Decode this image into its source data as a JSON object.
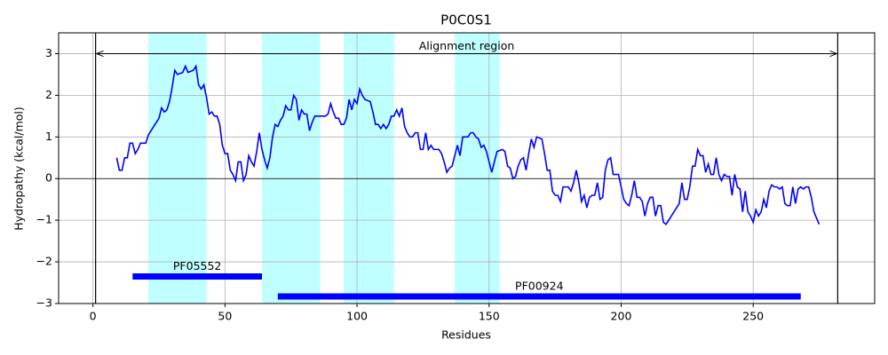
{
  "chart_data": {
    "type": "line",
    "title": "P0C0S1",
    "x_label": "Residues",
    "y_label": "Hydropathy (kcal/mol)",
    "x": [
      9,
      10,
      11,
      12,
      13,
      14,
      15,
      16,
      17,
      18,
      20,
      21,
      23,
      25,
      26,
      27,
      28,
      29,
      30,
      31,
      32,
      34,
      35,
      36,
      38,
      39,
      40,
      41,
      42,
      43,
      44,
      45,
      46,
      47,
      48,
      49,
      50,
      51,
      52,
      53,
      54,
      55,
      56,
      57,
      58,
      59,
      60,
      61,
      62,
      63,
      64,
      65,
      66,
      67,
      68,
      69,
      70,
      71,
      72,
      73,
      74,
      75,
      76,
      77,
      78,
      79,
      80,
      81,
      82,
      83,
      84,
      86,
      88,
      89,
      90,
      91,
      92,
      93,
      94,
      95,
      96,
      97,
      98,
      99,
      100,
      101,
      102,
      103,
      105,
      106,
      107,
      108,
      109,
      110,
      111,
      112,
      113,
      114,
      115,
      116,
      117,
      118,
      119,
      120,
      121,
      122,
      123,
      124,
      125,
      126,
      127,
      128,
      129,
      131,
      132,
      133,
      134,
      135,
      136,
      137,
      138,
      139,
      140,
      141,
      142,
      143,
      144,
      145,
      146,
      147,
      148,
      149,
      150,
      151,
      152,
      153,
      155,
      156,
      157,
      158,
      159,
      160,
      161,
      162,
      163,
      164,
      165,
      166,
      167,
      168,
      170,
      171,
      172,
      173,
      174,
      175,
      176,
      177,
      178,
      180,
      181,
      182,
      183,
      184,
      185,
      186,
      187,
      188,
      189,
      190,
      191,
      192,
      193,
      194,
      195,
      196,
      197,
      198,
      199,
      200,
      201,
      202,
      203,
      204,
      205,
      206,
      207,
      208,
      209,
      210,
      211,
      212,
      213,
      214,
      215,
      216,
      217,
      222,
      223,
      224,
      225,
      226,
      227,
      228,
      229,
      230,
      231,
      232,
      233,
      234,
      235,
      236,
      237,
      238,
      239,
      240,
      241,
      242,
      243,
      244,
      245,
      246,
      247,
      248,
      249,
      250,
      251,
      252,
      253,
      254,
      255,
      256,
      257,
      258,
      259,
      260,
      261,
      262,
      263,
      264,
      265,
      266,
      267,
      268,
      269,
      270,
      271,
      272,
      273,
      274,
      275
    ],
    "series": [
      {
        "color": "#0000ff",
        "values": [
          0.5,
          0.2,
          0.2,
          0.5,
          0.5,
          0.85,
          0.85,
          0.6,
          0.7,
          0.85,
          0.85,
          1.05,
          1.25,
          1.45,
          1.7,
          1.6,
          1.65,
          1.85,
          2.2,
          2.6,
          2.5,
          2.55,
          2.7,
          2.55,
          2.6,
          2.7,
          2.25,
          2.15,
          2.25,
          1.95,
          1.55,
          1.6,
          1.5,
          1.5,
          1.3,
          0.8,
          0.6,
          0.6,
          0.2,
          0.1,
          -0.05,
          0.4,
          0.4,
          -0.05,
          0.1,
          0.55,
          0.4,
          0.3,
          0.65,
          1.1,
          0.7,
          0.45,
          0.25,
          0.5,
          1.0,
          1.3,
          1.25,
          1.4,
          1.5,
          1.75,
          1.65,
          1.65,
          2.0,
          1.9,
          1.4,
          1.65,
          1.55,
          1.55,
          1.15,
          1.35,
          1.5,
          1.5,
          1.5,
          1.55,
          1.8,
          1.6,
          1.45,
          1.45,
          1.3,
          1.3,
          1.45,
          1.9,
          1.65,
          1.9,
          1.8,
          2.15,
          2.0,
          1.9,
          1.85,
          1.6,
          1.3,
          1.3,
          1.2,
          1.3,
          1.2,
          1.3,
          1.5,
          1.5,
          1.65,
          1.5,
          1.7,
          1.25,
          1.1,
          1.0,
          1.0,
          1.1,
          1.1,
          0.7,
          0.7,
          1.1,
          0.7,
          0.8,
          0.7,
          0.7,
          0.6,
          0.4,
          0.15,
          0.25,
          0.3,
          0.55,
          0.8,
          0.55,
          1.0,
          1.0,
          1.0,
          1.1,
          1.1,
          1.0,
          0.95,
          0.75,
          0.8,
          0.65,
          0.4,
          0.15,
          0.4,
          0.65,
          0.7,
          0.65,
          0.3,
          0.25,
          0.0,
          0.05,
          0.3,
          0.45,
          0.5,
          0.2,
          0.6,
          0.95,
          0.75,
          1.0,
          0.95,
          0.6,
          0.2,
          0.2,
          -0.3,
          -0.4,
          -0.4,
          -0.55,
          -0.2,
          -0.2,
          -0.3,
          -0.1,
          0.2,
          -0.1,
          -0.55,
          -0.4,
          -0.7,
          -0.45,
          -0.4,
          -0.4,
          -0.1,
          -0.5,
          -0.45,
          0.2,
          0.45,
          0.5,
          0.1,
          0.1,
          0.1,
          -0.2,
          -0.5,
          -0.6,
          -0.65,
          -0.4,
          -0.05,
          -0.45,
          -0.45,
          -0.55,
          -0.9,
          -0.6,
          -0.45,
          -0.45,
          -0.9,
          -0.65,
          -0.65,
          -1.05,
          -1.1,
          -0.6,
          -0.1,
          -0.5,
          -0.5,
          -0.2,
          0.3,
          0.3,
          0.7,
          0.55,
          0.55,
          0.15,
          0.35,
          0.1,
          0.1,
          0.5,
          0.1,
          -0.05,
          0.1,
          0.05,
          0.05,
          -0.4,
          0.1,
          -0.2,
          -0.25,
          -0.8,
          -0.3,
          -0.8,
          -0.9,
          -1.05,
          -0.75,
          -0.9,
          -0.8,
          -0.5,
          -0.7,
          -0.3,
          -0.15,
          -0.2,
          -0.2,
          -0.25,
          -0.2,
          -0.6,
          -0.65,
          -0.65,
          -0.2,
          -0.6,
          -0.25,
          -0.2,
          -0.25,
          -0.2,
          -0.2,
          -0.45,
          -0.8,
          -0.95,
          -1.1
        ]
      }
    ],
    "highlight_regions": [
      [
        21,
        43
      ],
      [
        64,
        86
      ],
      [
        95,
        114
      ],
      [
        137,
        154
      ]
    ],
    "highlight_color": "#bfffff",
    "alignment_region": {
      "label": "Alignment region",
      "start": 1,
      "end": 282,
      "y": 3
    },
    "domains": [
      {
        "label": "PF05552",
        "start": 15,
        "end": 64,
        "y": -2.35,
        "color": "#0000ff"
      },
      {
        "label": "PF00924",
        "start": 70,
        "end": 268,
        "y": -2.83,
        "color": "#0000ff"
      }
    ],
    "hline": 0,
    "xlim": [
      -13,
      296
    ],
    "ylim": [
      -3,
      3.5
    ],
    "xticks": [
      0,
      50,
      100,
      150,
      200,
      250
    ],
    "yticks": [
      {
        "value": -3,
        "label": "−3"
      },
      {
        "value": -2,
        "label": "−2"
      },
      {
        "value": -1,
        "label": "−1"
      },
      0,
      1,
      2,
      3
    ],
    "grid": true
  }
}
